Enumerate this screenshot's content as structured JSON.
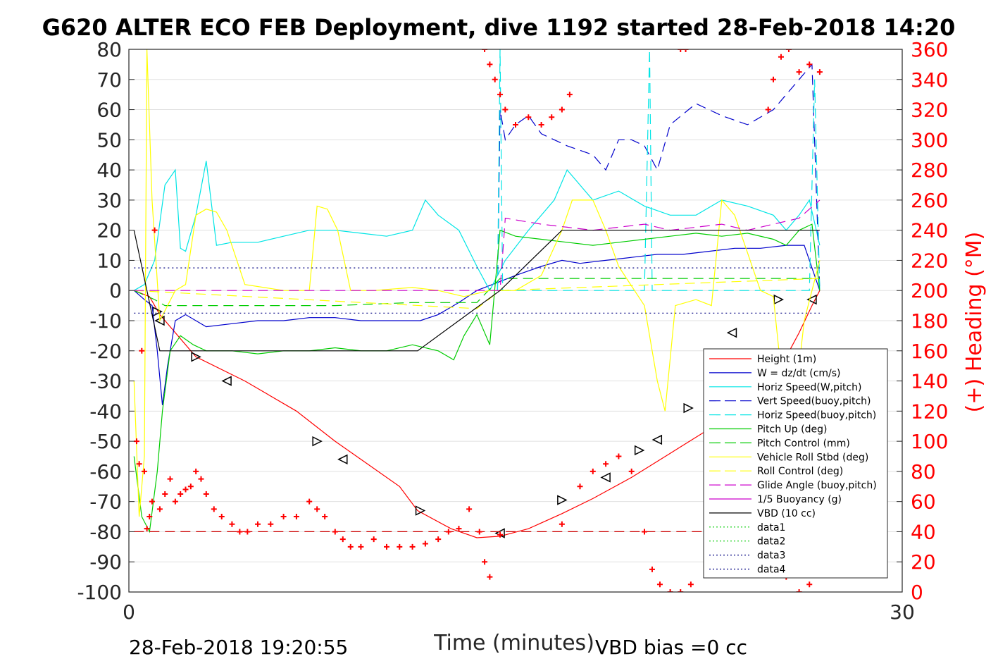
{
  "chart_data": {
    "type": "line",
    "title": "G620 ALTER ECO FEB Deployment, dive 1192 started 28-Feb-2018 14:20",
    "xlabel": "Time (minutes)",
    "ylabel_right": "(+) Heading (°M)",
    "xlim": [
      0,
      30
    ],
    "ylim_left": [
      -100,
      80
    ],
    "ylim_right": [
      0,
      360
    ],
    "x_ticks": [
      "0",
      "30"
    ],
    "y_ticks_left": [
      "80",
      "70",
      "60",
      "50",
      "40",
      "30",
      "20",
      "10",
      "0",
      "-10",
      "-20",
      "-30",
      "-40",
      "-50",
      "-60",
      "-70",
      "-80",
      "-90",
      "-100"
    ],
    "y_ticks_right": [
      "360",
      "340",
      "320",
      "300",
      "280",
      "260",
      "240",
      "220",
      "200",
      "180",
      "160",
      "140",
      "120",
      "100",
      "80",
      "60",
      "40",
      "20",
      "0"
    ],
    "grid": true,
    "legend_position": "bottom-right",
    "footer_left": "28-Feb-2018 19:20:55",
    "footer_right": "VBD bias =0 cc",
    "legend": [
      {
        "name": "Height (1m)",
        "color": "#ff0000",
        "style": "solid"
      },
      {
        "name": "W = dz/dt (cm/s)",
        "color": "#0000cc",
        "style": "solid"
      },
      {
        "name": "Horiz Speed(W,pitch)",
        "color": "#00e5e5",
        "style": "solid"
      },
      {
        "name": "Vert Speed(buoy,pitch)",
        "color": "#0000cc",
        "style": "dashed"
      },
      {
        "name": "Horiz Speed(buoy,pitch)",
        "color": "#00e5e5",
        "style": "dashed"
      },
      {
        "name": "Pitch Up (deg)",
        "color": "#00cc00",
        "style": "solid"
      },
      {
        "name": "Pitch Control (mm)",
        "color": "#00cc00",
        "style": "dashed"
      },
      {
        "name": "Vehicle Roll Stbd (deg)",
        "color": "#ffff00",
        "style": "solid"
      },
      {
        "name": "Roll Control (deg)",
        "color": "#ffff00",
        "style": "dashed"
      },
      {
        "name": "Glide Angle (buoy,pitch)",
        "color": "#cc00cc",
        "style": "dashed"
      },
      {
        "name": "1/5 Buoyancy (g)",
        "color": "#cc00cc",
        "style": "solid"
      },
      {
        "name": "VBD (10 cc)",
        "color": "#000000",
        "style": "solid"
      },
      {
        "name": "data1",
        "color": "#00cc00",
        "style": "dotted"
      },
      {
        "name": "data2",
        "color": "#00cc00",
        "style": "dotted"
      },
      {
        "name": "data3",
        "color": "#000080",
        "style": "dotted"
      },
      {
        "name": "data4",
        "color": "#000080",
        "style": "dotted"
      }
    ],
    "series": [
      {
        "name": "Height (1m)",
        "axis": "left",
        "color": "#ff0000",
        "x": [
          0.2,
          0.8,
          1.2,
          2.6,
          4.5,
          6.5,
          8.0,
          9.0,
          10.5,
          11.2,
          12.5,
          13.5,
          14.4,
          15.5,
          16.8,
          18.0,
          19.5,
          21.0,
          22.5,
          24.0,
          25.0,
          25.5,
          26.0,
          26.5,
          26.8
        ],
        "y": [
          0,
          -2,
          -8,
          -22,
          -30,
          -40,
          -50,
          -56,
          -65,
          -73,
          -79,
          -82,
          -81.5,
          -79,
          -74,
          -69,
          -62,
          -54,
          -46,
          -38,
          -30,
          -22,
          -14,
          -5,
          0
        ]
      },
      {
        "name": "Height markers",
        "axis": "left",
        "color": "#000000",
        "x": [
          1.1,
          1.2,
          2.6,
          3.8,
          7.3,
          8.3,
          11.3,
          14.4,
          16.8,
          18.5,
          19.8,
          20.5,
          21.7,
          23.4,
          25.2,
          26.5
        ],
        "y": [
          -7,
          -10,
          -22,
          -30,
          -50,
          -56,
          -73,
          -80.5,
          -69.5,
          -62,
          -53,
          -49.5,
          -39,
          -14,
          -3,
          -3
        ]
      },
      {
        "name": "W = dz/dt (cm/s)",
        "axis": "left",
        "color": "#0000cc",
        "x": [
          0.2,
          0.6,
          0.9,
          1.1,
          1.3,
          1.5,
          1.8,
          2.2,
          3.0,
          4.0,
          5.0,
          6.0,
          7.0,
          8.0,
          9.0,
          10.0,
          11.3,
          12.0,
          12.8,
          13.5,
          14.4,
          15.0,
          16.0,
          16.8,
          17.5,
          18.5,
          19.5,
          20.5,
          21.5,
          22.5,
          23.5,
          24.5,
          25.5,
          26.2,
          26.8
        ],
        "y": [
          0,
          -3,
          -5,
          -20,
          -38,
          -25,
          -10,
          -8,
          -12,
          -11,
          -10,
          -10,
          -9,
          -9,
          -10,
          -10,
          -10,
          -8,
          -4,
          0,
          3,
          5,
          8,
          10,
          9,
          10,
          11,
          12,
          12,
          13,
          14,
          14,
          15,
          15,
          0
        ]
      },
      {
        "name": "Horiz Speed(W,pitch)",
        "axis": "left",
        "color": "#00e5e5",
        "x": [
          0.2,
          0.6,
          1.0,
          1.4,
          1.8,
          2.0,
          2.2,
          2.6,
          3.0,
          3.4,
          4.0,
          5.0,
          6.0,
          7.0,
          8.0,
          9.0,
          10.0,
          11.0,
          11.5,
          12.0,
          12.8,
          13.5,
          14.0,
          14.6,
          15.5,
          16.5,
          17.0,
          17.5,
          18.0,
          19.0,
          20.0,
          21.0,
          22.0,
          23.0,
          24.0,
          25.0,
          25.5,
          26.0,
          26.4,
          26.8
        ],
        "y": [
          0,
          2,
          10,
          35,
          40,
          14,
          13,
          25,
          43,
          15,
          16,
          16,
          18,
          20,
          20,
          19,
          18,
          20,
          30,
          25,
          20,
          8,
          0,
          10,
          20,
          30,
          40,
          35,
          30,
          33,
          28,
          25,
          25,
          30,
          28,
          25,
          20,
          25,
          30,
          15
        ]
      },
      {
        "name": "Vert Speed(buoy,pitch)",
        "axis": "left",
        "color": "#0000cc",
        "x": [
          14.3,
          14.4,
          14.6,
          15.0,
          15.5,
          16.0,
          17.0,
          18.0,
          18.5,
          19.0,
          19.5,
          20.0,
          20.5,
          21.0,
          22.0,
          23.0,
          24.0,
          25.0,
          25.5,
          26.0,
          26.5,
          26.8
        ],
        "y": [
          0,
          60,
          50,
          55,
          58,
          52,
          48,
          45,
          40,
          50,
          50,
          48,
          40,
          55,
          62,
          58,
          55,
          60,
          65,
          70,
          75,
          0
        ]
      },
      {
        "name": "Horiz Speed(buoy,pitch)",
        "axis": "left",
        "color": "#00e5e5",
        "x": [
          14.3,
          14.4,
          14.5,
          20.0,
          20.2,
          20.3,
          20.5,
          26.4,
          26.6,
          26.8
        ],
        "y": [
          0,
          80,
          0,
          0,
          80,
          0,
          0,
          0,
          70,
          0
        ]
      },
      {
        "name": "Pitch Up (deg)",
        "axis": "left",
        "color": "#00cc00",
        "x": [
          0.2,
          0.5,
          0.8,
          1.1,
          1.3,
          1.6,
          2.0,
          2.5,
          3.0,
          4.0,
          5.0,
          6.0,
          7.0,
          8.0,
          9.0,
          10.0,
          11.0,
          12.0,
          12.6,
          13.0,
          13.5,
          14.0,
          14.4,
          15.0,
          16.0,
          17.0,
          18.0,
          19.0,
          20.0,
          21.0,
          22.0,
          23.0,
          24.0,
          25.0,
          25.5,
          26.0,
          26.5,
          26.8
        ],
        "y": [
          -55,
          -75,
          -80,
          -60,
          -40,
          -20,
          -15,
          -18,
          -20,
          -20,
          -21,
          -20,
          -20,
          -19,
          -20,
          -20,
          -18,
          -20,
          -23,
          -15,
          -8,
          -18,
          20,
          18,
          17,
          16,
          15,
          16,
          17,
          18,
          19,
          18,
          19,
          17,
          15,
          20,
          22,
          0
        ]
      },
      {
        "name": "Pitch Control (mm)",
        "axis": "left",
        "color": "#00cc00",
        "x": [
          0.2,
          1.0,
          1.4,
          2.0,
          5.0,
          8.0,
          11.0,
          13.5,
          14.4,
          17.0,
          20.0,
          23.0,
          26.0,
          26.8
        ],
        "y": [
          0,
          -3,
          -5,
          -5,
          -5,
          -5,
          -4,
          -4,
          4,
          4,
          4,
          4,
          4,
          4
        ]
      },
      {
        "name": "Vehicle Roll Stbd (deg)",
        "axis": "left",
        "color": "#ffff00",
        "x": [
          0.2,
          0.4,
          0.6,
          0.7,
          0.9,
          1.2,
          1.8,
          2.2,
          2.6,
          3.0,
          3.4,
          3.8,
          4.5,
          6.0,
          7.0,
          7.3,
          7.7,
          8.1,
          8.6,
          9.5,
          11.0,
          12.0,
          13.0,
          14.0,
          15.0,
          16.0,
          16.8,
          17.2,
          18.0,
          18.5,
          19.0,
          20.0,
          20.5,
          20.8,
          21.2,
          22.0,
          22.6,
          23.0,
          23.5,
          24.5,
          25.0,
          25.4,
          25.8,
          26.2,
          26.8
        ],
        "y": [
          -30,
          -75,
          -55,
          80,
          30,
          -10,
          0,
          2,
          25,
          27,
          26,
          20,
          2,
          0,
          0,
          28,
          27,
          20,
          0,
          0,
          1,
          0,
          -2,
          0,
          0,
          5,
          20,
          30,
          30,
          20,
          8,
          -5,
          -30,
          -40,
          -5,
          -3,
          -5,
          30,
          25,
          0,
          -2,
          -35,
          -40,
          -10,
          10
        ]
      },
      {
        "name": "Roll Control (deg)",
        "axis": "left",
        "color": "#ffff00",
        "x": [
          0.2,
          13.5,
          14.4,
          26.8
        ],
        "y": [
          0,
          -6,
          0,
          4
        ]
      },
      {
        "name": "Glide Angle (buoy,pitch)",
        "axis": "left",
        "color": "#cc00cc",
        "x": [
          0.2,
          14.4,
          14.6,
          16.0,
          17.0,
          18.0,
          19.0,
          20.0,
          21.0,
          22.0,
          23.0,
          24.0,
          25.0,
          26.0,
          26.8
        ],
        "y": [
          0,
          0,
          24,
          22,
          21,
          20,
          21,
          22,
          20,
          21,
          22,
          20,
          22,
          24,
          30
        ]
      },
      {
        "name": "VBD (10 cc)",
        "axis": "left",
        "color": "#000000",
        "x": [
          0.2,
          1.2,
          11.2,
          14.4,
          16.8,
          26.8
        ],
        "y": [
          20,
          -20,
          -20,
          0,
          20,
          20
        ]
      },
      {
        "name": "data3",
        "axis": "left",
        "color": "#000080",
        "x": [
          0.2,
          26.8
        ],
        "y": [
          7.5,
          7.5
        ]
      },
      {
        "name": "data4",
        "axis": "left",
        "color": "#000080",
        "x": [
          0.2,
          26.8
        ],
        "y": [
          -7.5,
          -7.5
        ]
      },
      {
        "name": "Heading reference",
        "axis": "right",
        "color": "#cc0000",
        "x": [
          0.2,
          26.8
        ],
        "y": [
          40,
          40
        ]
      },
      {
        "name": "Heading",
        "axis": "right",
        "color": "#ff0000",
        "x": [
          0.3,
          0.4,
          0.5,
          0.6,
          0.7,
          0.8,
          0.9,
          1.0,
          1.2,
          1.4,
          1.6,
          1.8,
          2.0,
          2.2,
          2.4,
          2.6,
          2.8,
          3.0,
          3.3,
          3.6,
          4.0,
          4.3,
          4.6,
          5.0,
          5.5,
          6.0,
          6.5,
          7.0,
          7.3,
          7.6,
          8.0,
          8.3,
          8.6,
          9.0,
          9.5,
          10.0,
          10.5,
          11.0,
          11.5,
          12.0,
          12.4,
          12.8,
          13.2,
          13.6,
          13.8,
          14.0,
          14.4,
          16.8,
          17.5,
          18.0,
          18.5,
          19.0,
          19.5,
          20.0,
          20.3,
          20.6,
          21.0,
          21.4,
          21.8,
          22.5,
          23.0,
          23.5,
          24.0,
          24.5,
          25.0,
          25.5,
          26.0,
          26.4,
          26.8,
          13.8,
          14.0,
          14.2,
          14.4,
          14.6,
          15.0,
          15.5,
          16.0,
          16.4,
          16.8,
          17.1,
          21.4,
          21.6,
          24.8,
          25.0,
          25.3,
          25.6,
          26.0,
          26.4,
          26.8
        ],
        "y": [
          100,
          85,
          160,
          80,
          42,
          50,
          60,
          240,
          55,
          65,
          75,
          60,
          65,
          68,
          70,
          80,
          75,
          65,
          55,
          50,
          45,
          40,
          40,
          45,
          45,
          50,
          50,
          60,
          55,
          50,
          40,
          35,
          30,
          30,
          35,
          30,
          30,
          30,
          32,
          35,
          40,
          42,
          55,
          40,
          20,
          10,
          38,
          45,
          70,
          80,
          85,
          90,
          80,
          40,
          15,
          5,
          0,
          0,
          5,
          20,
          30,
          50,
          80,
          60,
          20,
          10,
          0,
          5,
          15,
          360,
          350,
          340,
          330,
          320,
          310,
          315,
          310,
          315,
          320,
          330,
          360,
          360,
          320,
          340,
          355,
          360,
          345,
          350,
          345
        ]
      }
    ]
  }
}
